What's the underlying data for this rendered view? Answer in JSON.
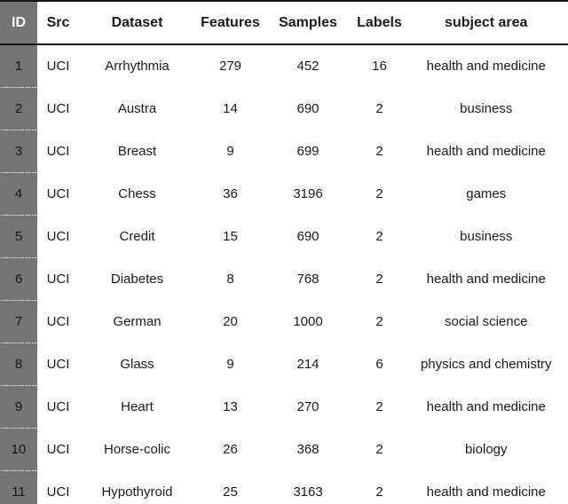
{
  "table": {
    "columns": [
      "ID",
      "Src",
      "Dataset",
      "Features",
      "Samples",
      "Labels",
      "subject area"
    ],
    "rows": [
      [
        "1",
        "UCI",
        "Arrhythmia",
        "279",
        "452",
        "16",
        "health and medicine"
      ],
      [
        "2",
        "UCI",
        "Austra",
        "14",
        "690",
        "2",
        "business"
      ],
      [
        "3",
        "UCI",
        "Breast",
        "9",
        "699",
        "2",
        "health and medicine"
      ],
      [
        "4",
        "UCI",
        "Chess",
        "36",
        "3196",
        "2",
        "games"
      ],
      [
        "5",
        "UCI",
        "Credit",
        "15",
        "690",
        "2",
        "business"
      ],
      [
        "6",
        "UCI",
        "Diabetes",
        "8",
        "768",
        "2",
        "health and medicine"
      ],
      [
        "7",
        "UCI",
        "German",
        "20",
        "1000",
        "2",
        "social science"
      ],
      [
        "8",
        "UCI",
        "Glass",
        "9",
        "214",
        "6",
        "physics and chemistry"
      ],
      [
        "9",
        "UCI",
        "Heart",
        "13",
        "270",
        "2",
        "health and medicine"
      ],
      [
        "10",
        "UCI",
        "Horse-colic",
        "26",
        "368",
        "2",
        "biology"
      ],
      [
        "11",
        "UCI",
        "Hypothyroid",
        "25",
        "3163",
        "2",
        "health and medicine"
      ]
    ]
  },
  "colors": {
    "id_column_bg": "#747474",
    "id_header_text": "#ffffff",
    "body_text": "#1b1b1b",
    "border_dark": "#141414",
    "border_light": "#b5b5b5"
  }
}
